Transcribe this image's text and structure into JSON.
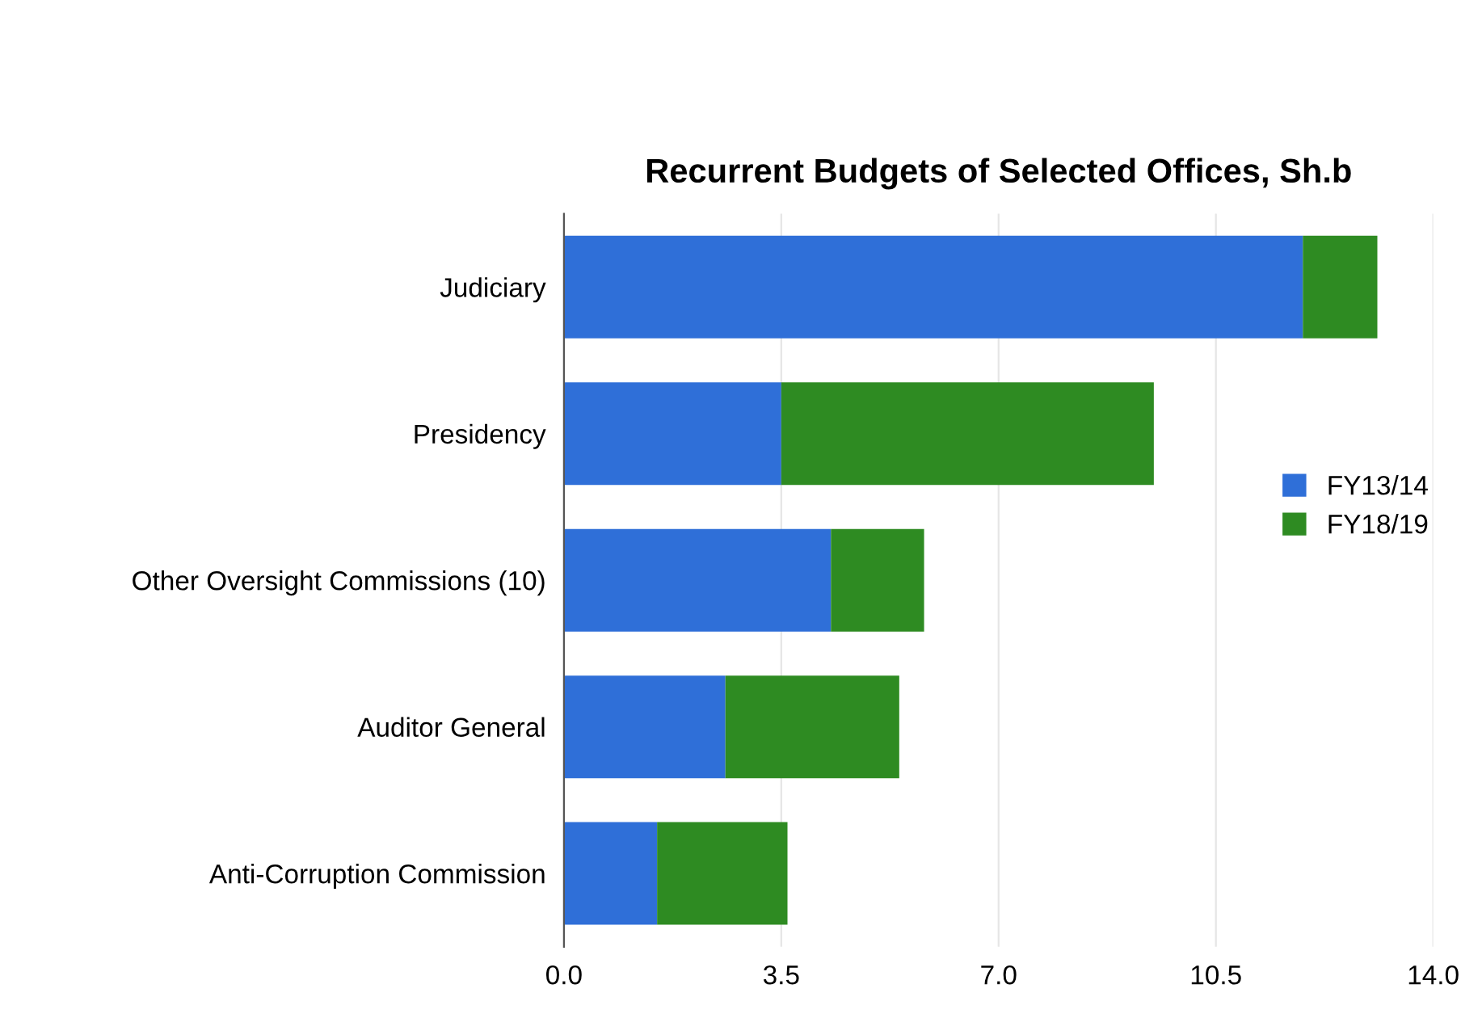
{
  "chart_data": {
    "type": "bar",
    "orientation": "horizontal",
    "stacked": true,
    "title": "Recurrent Budgets of Selected Offices, Sh.b",
    "categories": [
      "Judiciary",
      "Presidency",
      "Other Oversight Commissions (10)",
      "Auditor General",
      "Anti-Corruption Commission"
    ],
    "series": [
      {
        "name": "FY13/14",
        "color": "#2f6fd8",
        "values": [
          11.9,
          3.5,
          4.3,
          2.6,
          1.5
        ]
      },
      {
        "name": "FY18/19",
        "color": "#2e8b22",
        "values": [
          1.2,
          6.0,
          1.5,
          2.8,
          2.1
        ]
      }
    ],
    "xlim": [
      0,
      14
    ],
    "xticks": [
      {
        "value": 0,
        "label": "0.0"
      },
      3.5,
      {
        "value": 7,
        "label": "7.0"
      },
      10.5,
      {
        "value": 14,
        "label": "14.0"
      }
    ],
    "grid": "x",
    "legend": "right"
  }
}
